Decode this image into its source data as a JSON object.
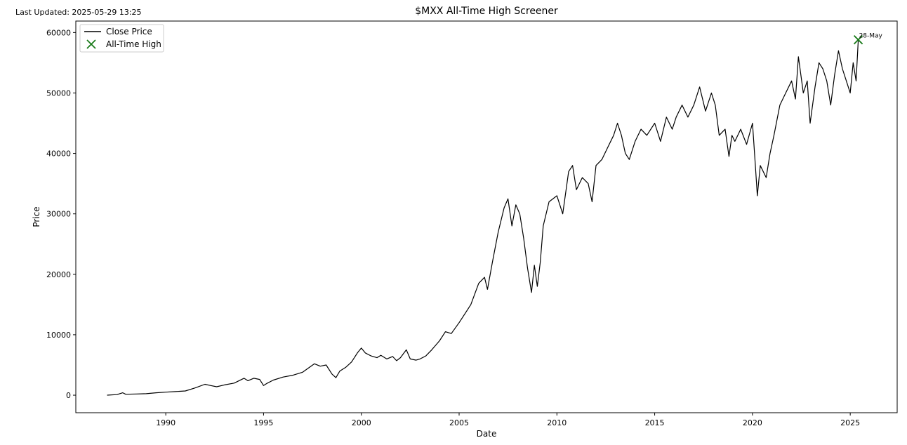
{
  "header": {
    "last_updated": "Last Updated: 2025-05-29 13:25"
  },
  "chart_data": {
    "type": "line",
    "title": "$MXX All-Time High Screener",
    "xlabel": "Date",
    "ylabel": "Price",
    "xlim": [
      1985.4,
      2027.4
    ],
    "ylim": [
      -2900,
      61900
    ],
    "x_ticks": [
      1990,
      1995,
      2000,
      2005,
      2010,
      2015,
      2020,
      2025
    ],
    "y_ticks": [
      0,
      10000,
      20000,
      30000,
      40000,
      50000,
      60000
    ],
    "grid": false,
    "legend": {
      "placement": "top-left",
      "entries": [
        "Close Price",
        "All-Time High"
      ]
    },
    "colors": {
      "line": "#000000",
      "marker": "#1a7a1a"
    },
    "series": [
      {
        "name": "Close Price",
        "x": [
          1987.0,
          1987.5,
          1987.8,
          1987.95,
          1988.5,
          1989.0,
          1989.5,
          1990.0,
          1990.5,
          1991.0,
          1991.5,
          1992.0,
          1992.3,
          1992.6,
          1993.0,
          1993.5,
          1994.0,
          1994.2,
          1994.5,
          1994.8,
          1995.0,
          1995.2,
          1995.5,
          1996.0,
          1996.5,
          1997.0,
          1997.3,
          1997.6,
          1997.9,
          1998.2,
          1998.5,
          1998.7,
          1998.9,
          1999.2,
          1999.5,
          1999.8,
          2000.0,
          2000.2,
          2000.5,
          2000.8,
          2001.0,
          2001.3,
          2001.6,
          2001.8,
          2002.0,
          2002.3,
          2002.5,
          2002.8,
          2003.0,
          2003.3,
          2003.6,
          2004.0,
          2004.3,
          2004.6,
          2005.0,
          2005.3,
          2005.6,
          2006.0,
          2006.3,
          2006.45,
          2006.7,
          2007.0,
          2007.3,
          2007.5,
          2007.7,
          2007.9,
          2008.1,
          2008.3,
          2008.5,
          2008.7,
          2008.85,
          2009.0,
          2009.15,
          2009.3,
          2009.6,
          2010.0,
          2010.3,
          2010.6,
          2010.8,
          2011.0,
          2011.3,
          2011.6,
          2011.8,
          2012.0,
          2012.3,
          2012.6,
          2012.9,
          2013.1,
          2013.3,
          2013.5,
          2013.7,
          2014.0,
          2014.3,
          2014.6,
          2015.0,
          2015.3,
          2015.6,
          2015.9,
          2016.1,
          2016.4,
          2016.7,
          2017.0,
          2017.3,
          2017.6,
          2017.9,
          2018.1,
          2018.3,
          2018.6,
          2018.8,
          2018.95,
          2019.1,
          2019.4,
          2019.7,
          2020.0,
          2020.15,
          2020.25,
          2020.4,
          2020.7,
          2020.9,
          2021.1,
          2021.4,
          2021.7,
          2022.0,
          2022.2,
          2022.35,
          2022.6,
          2022.8,
          2022.95,
          2023.2,
          2023.4,
          2023.6,
          2023.8,
          2024.0,
          2024.2,
          2024.4,
          2024.6,
          2024.8,
          2025.0,
          2025.15,
          2025.3,
          2025.41
        ],
        "y": [
          0,
          100,
          400,
          150,
          200,
          250,
          400,
          500,
          600,
          700,
          1200,
          1800,
          1600,
          1400,
          1700,
          2000,
          2800,
          2400,
          2800,
          2600,
          1600,
          2000,
          2500,
          3000,
          3300,
          3800,
          4500,
          5200,
          4800,
          5000,
          3500,
          2900,
          4000,
          4600,
          5500,
          7000,
          7800,
          7000,
          6500,
          6200,
          6600,
          6000,
          6400,
          5700,
          6200,
          7500,
          6000,
          5800,
          6000,
          6500,
          7500,
          9000,
          10500,
          10200,
          12000,
          13500,
          15000,
          18500,
          19500,
          17500,
          22000,
          27000,
          31000,
          32500,
          28000,
          31500,
          30000,
          26000,
          21000,
          17000,
          21500,
          18000,
          22000,
          28000,
          32000,
          33000,
          30000,
          37000,
          38000,
          34000,
          36000,
          35000,
          32000,
          38000,
          39000,
          41000,
          43000,
          45000,
          43000,
          40000,
          39000,
          42000,
          44000,
          43000,
          45000,
          42000,
          46000,
          44000,
          46000,
          48000,
          46000,
          48000,
          51000,
          47000,
          50000,
          48000,
          43000,
          44000,
          39500,
          43000,
          42000,
          44000,
          41500,
          45000,
          38000,
          33000,
          38000,
          36000,
          40000,
          43000,
          48000,
          50000,
          52000,
          49000,
          56000,
          50000,
          52000,
          45000,
          51000,
          55000,
          54000,
          52000,
          48000,
          53000,
          57000,
          54000,
          52000,
          50000,
          55000,
          52000,
          58800
        ]
      }
    ],
    "all_time_high": {
      "x": 2025.41,
      "y": 58800,
      "label": "28-May"
    }
  }
}
